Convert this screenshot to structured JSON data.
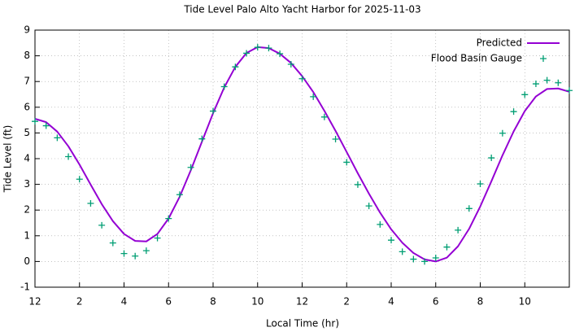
{
  "chart_data": {
    "type": "line",
    "title": "Tide Level Palo Alto Yacht Harbor for 2025-11-03",
    "xlabel": "Local Time (hr)",
    "ylabel": "Tide Level (ft)",
    "x": [
      0,
      0.5,
      1,
      1.5,
      2,
      2.5,
      3,
      3.5,
      4,
      4.5,
      5,
      5.5,
      6,
      6.5,
      7,
      7.5,
      8,
      8.5,
      9,
      9.5,
      10,
      10.5,
      11,
      11.5,
      12,
      12.5,
      13,
      13.5,
      14,
      14.5,
      15,
      15.5,
      16,
      16.5,
      17,
      17.5,
      18,
      18.5,
      19,
      19.5,
      20,
      20.5,
      21,
      21.5,
      22,
      22.5,
      23,
      23.5,
      24
    ],
    "series": [
      {
        "name": "Predicted",
        "color": "#9400d3",
        "style": "line",
        "values": [
          5.55,
          5.42,
          5.05,
          4.48,
          3.77,
          2.99,
          2.23,
          1.57,
          1.07,
          0.8,
          0.78,
          1.07,
          1.67,
          2.52,
          3.55,
          4.66,
          5.77,
          6.77,
          7.57,
          8.11,
          8.34,
          8.3,
          8.08,
          7.72,
          7.21,
          6.59,
          5.86,
          5.08,
          4.26,
          3.43,
          2.64,
          1.9,
          1.25,
          0.73,
          0.33,
          0.08,
          0,
          0.15,
          0.59,
          1.27,
          2.14,
          3.12,
          4.13,
          5.06,
          5.85,
          6.42,
          6.71,
          6.73,
          6.6
        ]
      },
      {
        "name": "Flood Basin Gauge",
        "color": "#009e73",
        "style": "points",
        "values": [
          5.45,
          5.28,
          4.81,
          4.08,
          3.2,
          2.26,
          1.41,
          0.72,
          0.31,
          0.21,
          0.42,
          0.91,
          1.67,
          2.6,
          3.66,
          4.77,
          5.85,
          6.8,
          7.57,
          8.1,
          8.33,
          8.3,
          8.08,
          7.67,
          7.11,
          6.41,
          5.62,
          4.76,
          3.86,
          2.99,
          2.16,
          1.44,
          0.83,
          0.38,
          0.09,
          0,
          0.14,
          0.56,
          1.22,
          2.06,
          3.02,
          4.03,
          4.99,
          5.83,
          6.49,
          6.91,
          7.05,
          6.95,
          6.65
        ]
      }
    ],
    "xlim": [
      0,
      24
    ],
    "xticks": [
      {
        "value": 0,
        "label": "12"
      },
      2,
      4,
      6,
      8,
      10,
      12,
      {
        "value": 14,
        "label": "2"
      },
      {
        "value": 16,
        "label": "4"
      },
      {
        "value": 18,
        "label": "6"
      },
      {
        "value": 20,
        "label": "8"
      },
      {
        "value": 22,
        "label": "10"
      }
    ],
    "ylim": [
      -1,
      9
    ],
    "yticks": [
      -1,
      0,
      1,
      2,
      3,
      4,
      5,
      6,
      7,
      8,
      9
    ],
    "grid": true,
    "legend": "top right"
  }
}
